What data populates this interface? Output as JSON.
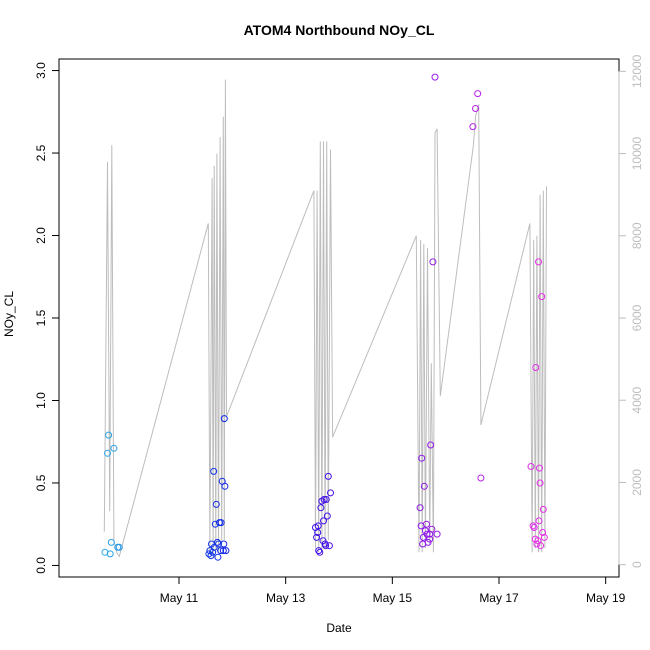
{
  "chart_data": {
    "type": "scatter",
    "title": "ATOM4 Northbound NOy_CL",
    "xlabel": "Date",
    "ylabel": "NOy_CL",
    "x_start_date": "2018-05-09",
    "xlim_days": [
      -0.25,
      10.25
    ],
    "ylim": [
      -0.07,
      3.07
    ],
    "y2lim": [
      -300,
      12300
    ],
    "x_ticks": [
      {
        "day": 2,
        "label": "May 11"
      },
      {
        "day": 4,
        "label": "May 13"
      },
      {
        "day": 6,
        "label": "May 15"
      },
      {
        "day": 8,
        "label": "May 17"
      },
      {
        "day": 10,
        "label": "May 19"
      }
    ],
    "y_ticks": [
      0.0,
      0.5,
      1.0,
      1.5,
      2.0,
      2.5,
      3.0
    ],
    "y_tick_labels": [
      "0.0",
      "0.5",
      "1.0",
      "1.5",
      "2.0",
      "2.5",
      "3.0"
    ],
    "y2_ticks": [
      0,
      2000,
      4000,
      6000,
      8000,
      10000,
      12000
    ],
    "y2_tick_labels": [
      "0",
      "2000",
      "4000",
      "6000",
      "8000",
      "10000",
      "12000"
    ],
    "grid": false,
    "legend": "none",
    "point_color_gradient": [
      "#2aa8e8",
      "#0a0ae8",
      "#7c14e8",
      "#e830e8"
    ],
    "line_color": "#bdbdbd",
    "series": [
      {
        "type": "scatter",
        "points": [
          [
            0.61,
            0.08
          ],
          [
            0.66,
            0.68
          ],
          [
            0.68,
            0.79
          ],
          [
            0.71,
            0.07
          ],
          [
            0.73,
            0.14
          ],
          [
            0.78,
            0.71
          ],
          [
            0.85,
            0.11
          ],
          [
            0.88,
            0.11
          ],
          [
            2.56,
            0.07
          ],
          [
            2.58,
            0.09
          ],
          [
            2.6,
            0.06
          ],
          [
            2.61,
            0.13
          ],
          [
            2.63,
            0.08
          ],
          [
            2.65,
            0.57
          ],
          [
            2.68,
            0.25
          ],
          [
            2.7,
            0.37
          ],
          [
            2.72,
            0.14
          ],
          [
            2.74,
            0.13
          ],
          [
            2.76,
            0.26
          ],
          [
            2.78,
            0.09
          ],
          [
            2.79,
            0.26
          ],
          [
            2.81,
            0.51
          ],
          [
            2.83,
            0.09
          ],
          [
            2.84,
            0.13
          ],
          [
            2.85,
            0.89
          ],
          [
            2.86,
            0.48
          ],
          [
            2.88,
            0.09
          ],
          [
            2.73,
            0.05
          ],
          [
            2.66,
            0.11
          ],
          [
            4.56,
            0.23
          ],
          [
            4.58,
            0.17
          ],
          [
            4.6,
            0.2
          ],
          [
            4.61,
            0.24
          ],
          [
            4.62,
            0.09
          ],
          [
            4.64,
            0.08
          ],
          [
            4.66,
            0.35
          ],
          [
            4.68,
            0.39
          ],
          [
            4.7,
            0.15
          ],
          [
            4.71,
            0.27
          ],
          [
            4.72,
            0.4
          ],
          [
            4.74,
            0.13
          ],
          [
            4.75,
            0.12
          ],
          [
            4.76,
            0.4
          ],
          [
            4.78,
            0.3
          ],
          [
            4.8,
            0.54
          ],
          [
            4.82,
            0.12
          ],
          [
            4.84,
            0.44
          ],
          [
            6.52,
            0.35
          ],
          [
            6.54,
            0.24
          ],
          [
            6.55,
            0.65
          ],
          [
            6.57,
            0.13
          ],
          [
            6.58,
            0.17
          ],
          [
            6.6,
            0.48
          ],
          [
            6.62,
            0.21
          ],
          [
            6.64,
            0.25
          ],
          [
            6.65,
            0.19
          ],
          [
            6.67,
            0.14
          ],
          [
            6.7,
            0.19
          ],
          [
            6.72,
            0.73
          ],
          [
            6.74,
            0.22
          ],
          [
            6.76,
            1.84
          ],
          [
            6.8,
            2.96
          ],
          [
            6.84,
            0.19
          ],
          [
            6.7,
            0.16
          ],
          [
            7.51,
            2.66
          ],
          [
            7.56,
            2.77
          ],
          [
            7.6,
            2.86
          ],
          [
            7.66,
            0.53
          ],
          [
            8.6,
            0.6
          ],
          [
            8.64,
            0.24
          ],
          [
            8.66,
            0.23
          ],
          [
            8.68,
            0.16
          ],
          [
            8.69,
            1.2
          ],
          [
            8.71,
            0.13
          ],
          [
            8.73,
            0.15
          ],
          [
            8.74,
            1.84
          ],
          [
            8.75,
            0.27
          ],
          [
            8.76,
            0.59
          ],
          [
            8.77,
            0.5
          ],
          [
            8.78,
            0.12
          ],
          [
            8.8,
            1.63
          ],
          [
            8.82,
            0.2
          ],
          [
            8.83,
            0.34
          ],
          [
            8.85,
            0.17
          ]
        ]
      },
      {
        "type": "line",
        "axis": "right",
        "points": [
          [
            0.6,
            800
          ],
          [
            0.66,
            9800
          ],
          [
            0.7,
            1300
          ],
          [
            0.74,
            10200
          ],
          [
            0.78,
            600
          ],
          [
            0.83,
            300
          ],
          [
            0.88,
            200
          ],
          [
            2.55,
            8300
          ],
          [
            2.58,
            300
          ],
          [
            2.62,
            9400
          ],
          [
            2.64,
            200
          ],
          [
            2.66,
            9700
          ],
          [
            2.69,
            300
          ],
          [
            2.71,
            10000
          ],
          [
            2.74,
            300
          ],
          [
            2.77,
            10400
          ],
          [
            2.8,
            500
          ],
          [
            2.83,
            10900
          ],
          [
            2.85,
            600
          ],
          [
            2.87,
            11800
          ],
          [
            2.89,
            3600
          ],
          [
            4.53,
            9100
          ],
          [
            4.56,
            400
          ],
          [
            4.59,
            9100
          ],
          [
            4.62,
            300
          ],
          [
            4.65,
            10300
          ],
          [
            4.68,
            300
          ],
          [
            4.71,
            10300
          ],
          [
            4.74,
            400
          ],
          [
            4.77,
            10300
          ],
          [
            4.8,
            600
          ],
          [
            4.84,
            10100
          ],
          [
            4.88,
            3100
          ],
          [
            6.45,
            8000
          ],
          [
            6.5,
            300
          ],
          [
            6.53,
            7900
          ],
          [
            6.56,
            300
          ],
          [
            6.59,
            7800
          ],
          [
            6.62,
            400
          ],
          [
            6.66,
            7700
          ],
          [
            6.7,
            500
          ],
          [
            6.73,
            4900
          ],
          [
            6.77,
            300
          ],
          [
            6.8,
            10500
          ],
          [
            6.84,
            10600
          ],
          [
            6.9,
            4100
          ],
          [
            7.52,
            10200
          ],
          [
            7.56,
            10900
          ],
          [
            7.62,
            11200
          ],
          [
            7.66,
            3400
          ],
          [
            8.58,
            8300
          ],
          [
            8.62,
            300
          ],
          [
            8.65,
            7900
          ],
          [
            8.68,
            400
          ],
          [
            8.71,
            8000
          ],
          [
            8.74,
            300
          ],
          [
            8.77,
            9000
          ],
          [
            8.8,
            300
          ],
          [
            8.83,
            9100
          ],
          [
            8.86,
            400
          ],
          [
            8.89,
            9200
          ]
        ]
      }
    ]
  }
}
